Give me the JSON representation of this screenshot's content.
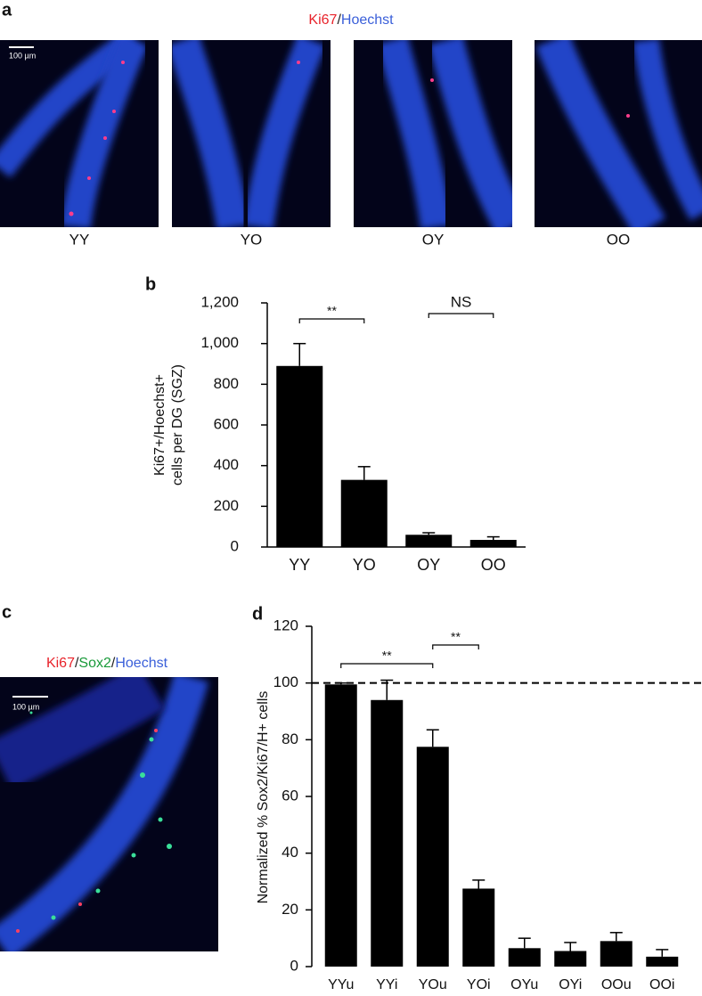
{
  "images": {
    "panel_a": "a",
    "panel_c": "c",
    "legend_a": [
      {
        "text": "Ki67",
        "color": "#e8232b"
      },
      {
        "text": "/",
        "color": "#222222"
      },
      {
        "text": "Hoechst",
        "color": "#3a5fd9"
      }
    ],
    "legend_c": [
      {
        "text": "Ki67",
        "color": "#e8232b"
      },
      {
        "text": "/",
        "color": "#222222"
      },
      {
        "text": "Sox2",
        "color": "#1a9a3a"
      },
      {
        "text": "/",
        "color": "#222222"
      },
      {
        "text": "Hoechst",
        "color": "#3a5fd9"
      }
    ],
    "scale_bar": "100 µm",
    "scale_bar_c": "100 µm",
    "labels": [
      "YY",
      "YO",
      "OY",
      "OO"
    ]
  },
  "chart_data": [
    {
      "type": "bar",
      "panel": "b",
      "ylabel": [
        "Ki67+/Hoechst+",
        "cells per DG (SGZ)"
      ],
      "categories": [
        "YY",
        "YO",
        "OY",
        "OO"
      ],
      "values": [
        890,
        330,
        60,
        35
      ],
      "errors": [
        110,
        65,
        10,
        15
      ],
      "color": "#000000",
      "ylim": [
        0,
        1200
      ],
      "yticks": [
        0,
        200,
        400,
        600,
        800,
        {
          "value": 1000,
          "label": "1,000"
        },
        {
          "value": 1200,
          "label": "1,200"
        }
      ],
      "annotations": [
        {
          "label": "**",
          "between": [
            "YY",
            "YO"
          ]
        },
        {
          "label": "NS",
          "between": [
            "OY",
            "OO"
          ]
        }
      ]
    },
    {
      "type": "bar",
      "panel": "d",
      "ylabel": [
        "Normalized % Sox2/Ki67/H+ cells"
      ],
      "categories": [
        "YYu",
        "YYi",
        "YOu",
        "YOi",
        "OYu",
        "OYi",
        "OOu",
        "OOi"
      ],
      "values": [
        99.5,
        94,
        77.5,
        27.5,
        6.5,
        5.5,
        9,
        3.5
      ],
      "errors": [
        0.5,
        7,
        6,
        3,
        3.5,
        3,
        3,
        2.5
      ],
      "color": "#000000",
      "ylim": [
        0,
        120
      ],
      "yticks": [
        0,
        20,
        40,
        60,
        80,
        100,
        120
      ],
      "reference_line": 100,
      "annotations": [
        {
          "label": "**",
          "between": [
            "YYu",
            "YOu"
          ]
        },
        {
          "label": "**",
          "between": [
            "YOu",
            "YOi"
          ]
        }
      ]
    }
  ]
}
